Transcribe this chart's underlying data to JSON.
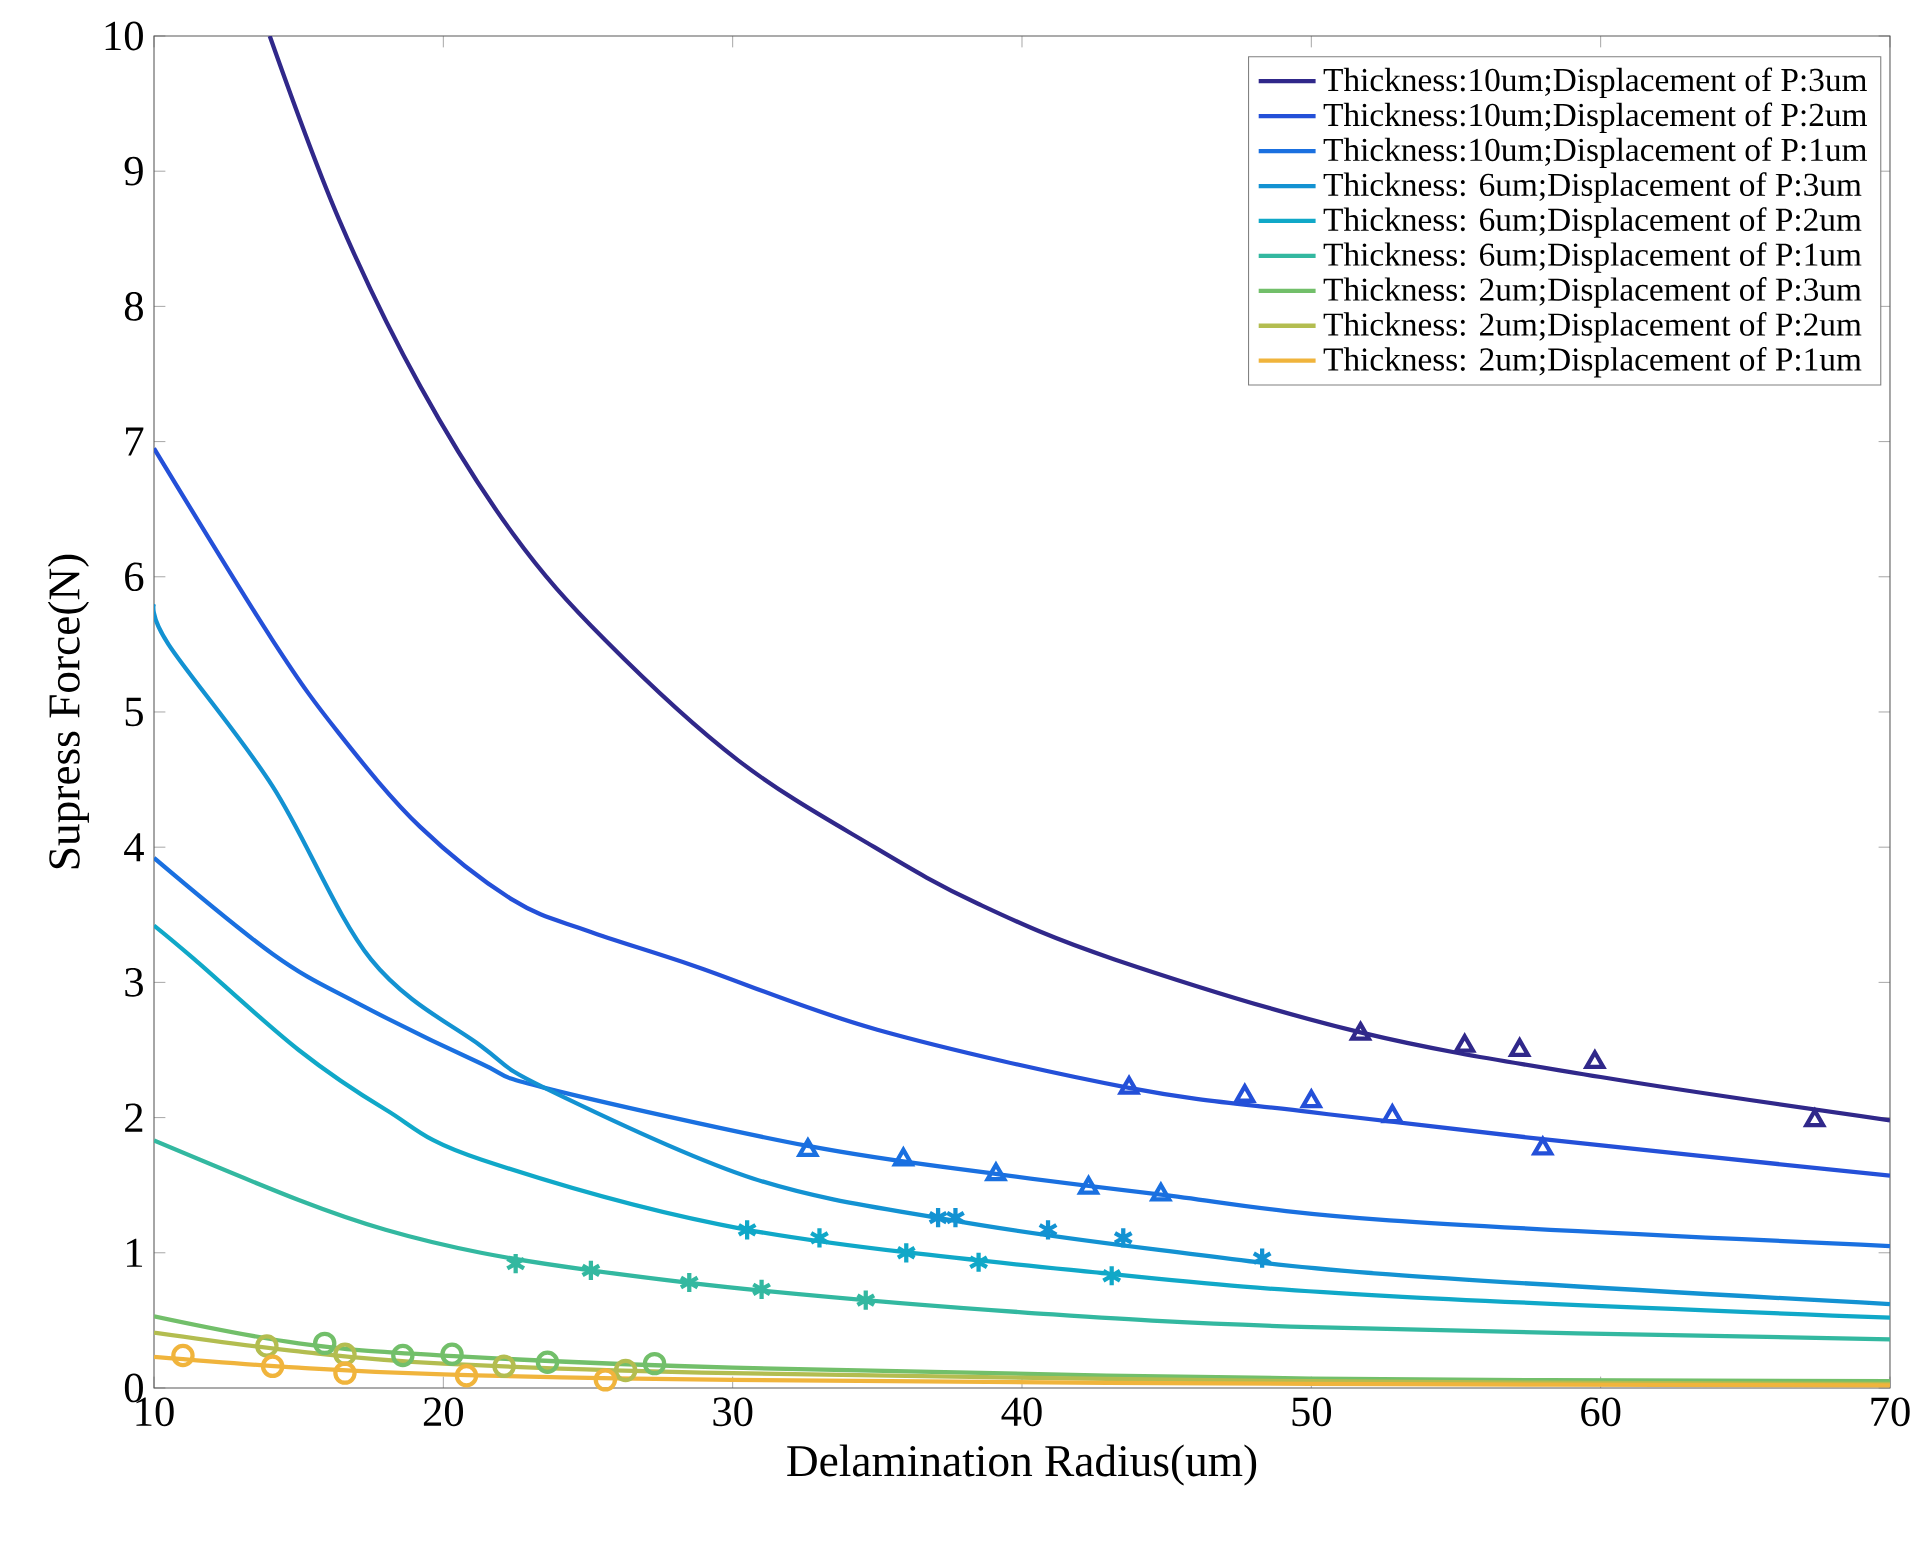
{
  "chart_data": {
    "type": "line",
    "xlabel": "Delamination Radius(um)",
    "ylabel": "Supress Force(N)",
    "xlim": [
      10,
      70
    ],
    "ylim": [
      0,
      10
    ],
    "xticks": [
      10,
      20,
      30,
      40,
      50,
      60,
      70
    ],
    "yticks": [
      0,
      1,
      2,
      3,
      4,
      5,
      6,
      7,
      8,
      9,
      10
    ],
    "grid": false,
    "legend": "top right",
    "series": [
      {
        "name": "Thickness:10um;Displacement of P:3um",
        "marker": "none",
        "color": "#30288a",
        "x": [
          14.0,
          16.4,
          19.2,
          22.4,
          25.6,
          30.2,
          34.9,
          38.5,
          43.2,
          51.7,
          60,
          70
        ],
        "values": [
          10.0,
          8.64,
          7.41,
          6.32,
          5.53,
          4.64,
          4.0,
          3.58,
          3.17,
          2.63,
          2.3,
          1.98
        ]
      },
      {
        "name": "Thickness:10um;Displacement of P:2um",
        "marker": "none",
        "color": "#2450d8",
        "x": [
          10,
          14.1,
          16.4,
          19.2,
          22.4,
          25,
          28.7,
          35,
          43.7,
          50,
          58,
          70
        ],
        "values": [
          6.95,
          5.53,
          4.84,
          4.15,
          3.61,
          3.38,
          3.12,
          2.65,
          2.22,
          2.04,
          1.84,
          1.57
        ]
      },
      {
        "name": "Thickness:10um;Displacement of P:1um",
        "marker": "none",
        "color": "#1a70e0",
        "x": [
          10,
          14.1,
          17,
          21.3,
          23.5,
          32.6,
          39.2,
          44.8,
          52.7,
          70
        ],
        "values": [
          3.92,
          3.21,
          2.85,
          2.4,
          2.22,
          1.79,
          1.58,
          1.43,
          1.24,
          1.05
        ]
      },
      {
        "name": "Thickness: 6um;Displacement of P:3um",
        "marker": "none",
        "color": "#1392d2",
        "x": [
          10,
          10.5,
          14.1,
          17.5,
          21.3,
          23.5,
          30.7,
          37.6,
          44.8,
          52.7,
          70
        ],
        "values": [
          5.8,
          5.5,
          4.45,
          3.17,
          2.53,
          2.22,
          1.55,
          1.24,
          1.02,
          0.84,
          0.62
        ]
      },
      {
        "name": "Thickness: 6um;Displacement of P:2um",
        "marker": "none",
        "color": "#10a8c8",
        "x": [
          10,
          11.4,
          15,
          18,
          21.3,
          30.5,
          43.2,
          52.7,
          70
        ],
        "values": [
          3.42,
          3.17,
          2.5,
          2.06,
          1.69,
          1.17,
          0.84,
          0.68,
          0.52
        ]
      },
      {
        "name": "Thickness: 6um;Displacement of P:1um",
        "marker": "none",
        "color": "#33b8a0",
        "x": [
          10,
          15,
          18,
          21.3,
          25.1,
          31,
          40,
          50,
          70
        ],
        "values": [
          1.83,
          1.39,
          1.17,
          1.0,
          0.87,
          0.72,
          0.56,
          0.45,
          0.36
        ]
      },
      {
        "name": "Thickness: 2um;Displacement of P:3um",
        "marker": "none",
        "color": "#72bf6a",
        "x": [
          10,
          15,
          20,
          30,
          50,
          70
        ],
        "values": [
          0.53,
          0.33,
          0.24,
          0.15,
          0.07,
          0.05
        ]
      },
      {
        "name": "Thickness: 2um;Displacement of P:2um",
        "marker": "none",
        "color": "#b3bd50",
        "x": [
          10,
          15,
          20,
          30,
          50,
          70
        ],
        "values": [
          0.41,
          0.27,
          0.18,
          0.11,
          0.05,
          0.03
        ]
      },
      {
        "name": "Thickness: 2um;Displacement of P:1um",
        "marker": "none",
        "color": "#f0b43c",
        "x": [
          10,
          15,
          20,
          30,
          50,
          70
        ],
        "values": [
          0.23,
          0.15,
          0.1,
          0.06,
          0.03,
          0.02
        ]
      },
      {
        "type": "scatter",
        "marker": "triangle",
        "color": "#30288a",
        "x": [
          51.7,
          55.3,
          57.2,
          59.8,
          67.4
        ],
        "values": [
          2.62,
          2.53,
          2.5,
          2.41,
          1.98
        ]
      },
      {
        "type": "scatter",
        "marker": "triangle",
        "color": "#2450d8",
        "x": [
          43.7,
          47.7,
          50,
          52.8,
          58
        ],
        "values": [
          2.22,
          2.16,
          2.12,
          2.01,
          1.77
        ]
      },
      {
        "type": "scatter",
        "marker": "triangle",
        "color": "#1a70e0",
        "x": [
          32.6,
          35.9,
          39.1,
          42.3,
          44.8
        ],
        "values": [
          1.76,
          1.69,
          1.58,
          1.48,
          1.43
        ]
      },
      {
        "type": "scatter",
        "marker": "cross",
        "color": "#1392d2",
        "x": [
          37.1,
          37.7,
          40.9,
          43.5,
          48.3
        ],
        "values": [
          1.26,
          1.26,
          1.17,
          1.11,
          0.96
        ]
      },
      {
        "type": "scatter",
        "marker": "cross",
        "color": "#10a8c8",
        "x": [
          30.5,
          33,
          36,
          38.5,
          43.1
        ],
        "values": [
          1.17,
          1.11,
          1.0,
          0.93,
          0.83
        ]
      },
      {
        "type": "scatter",
        "marker": "cross",
        "color": "#33b8a0",
        "x": [
          22.5,
          25.1,
          28.5,
          31,
          34.6
        ],
        "values": [
          0.92,
          0.87,
          0.78,
          0.73,
          0.65
        ]
      },
      {
        "type": "scatter",
        "marker": "circle",
        "color": "#72bf6a",
        "x": [
          15.9,
          18.6,
          20.3,
          23.6,
          27.3
        ],
        "values": [
          0.33,
          0.24,
          0.25,
          0.19,
          0.18
        ]
      },
      {
        "type": "scatter",
        "marker": "circle",
        "color": "#b3bd50",
        "x": [
          13.9,
          16.6,
          22.1,
          26.3
        ],
        "values": [
          0.31,
          0.25,
          0.16,
          0.13
        ]
      },
      {
        "type": "scatter",
        "marker": "circle",
        "color": "#f0b43c",
        "x": [
          11,
          14.1,
          16.6,
          20.8,
          25.6
        ],
        "values": [
          0.24,
          0.16,
          0.11,
          0.09,
          0.06
        ]
      }
    ]
  }
}
